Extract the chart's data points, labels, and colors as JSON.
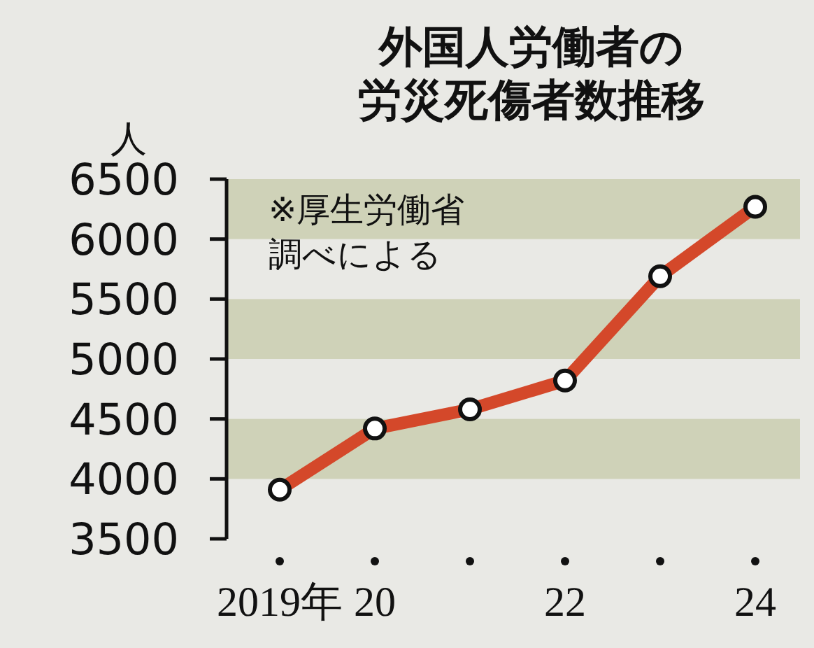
{
  "chart_data": {
    "type": "line",
    "title": "外国人労働者の労災死傷者数推移",
    "ylabel": "人",
    "categories": [
      "2019年",
      "20",
      null,
      "22",
      null,
      "24"
    ],
    "series": [
      {
        "color": "#d4482a",
        "values": [
          3910,
          4420,
          4580,
          4820,
          5690,
          6270
        ]
      }
    ],
    "ylim": [
      3500,
      6500
    ],
    "yticks": [
      3500,
      4000,
      4500,
      5000,
      5500,
      6000,
      6500
    ],
    "bands": [
      {
        "axis": "y",
        "from": 4000,
        "to": 4500,
        "color": "#cfd2b8"
      },
      {
        "axis": "y",
        "from": 5000,
        "to": 5500,
        "color": "#cfd2b8"
      },
      {
        "axis": "y",
        "from": 6000,
        "to": 6500,
        "color": "#cfd2b8"
      }
    ],
    "annotations": [
      "※厚生労働省調べによる"
    ],
    "marker": "circle",
    "line_style": "solid",
    "grid": false
  }
}
